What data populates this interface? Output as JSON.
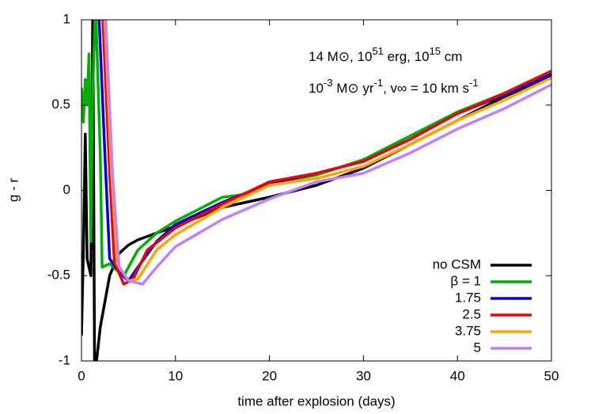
{
  "chart_data": {
    "type": "line",
    "xlabel": "time after explosion (days)",
    "ylabel": "g - r",
    "annotations": [
      [
        "14 M⊙, 10",
        "51",
        " erg, 10",
        "15",
        " cm"
      ],
      [
        "10",
        "-3",
        " M⊙ yr",
        "-1",
        ", v∞ = 10 km s",
        "-1"
      ]
    ],
    "xlim": [
      0,
      50
    ],
    "xticks": [
      0,
      10,
      20,
      30,
      40,
      50
    ],
    "ylim": [
      -1,
      1
    ],
    "yticks": [
      -1,
      -0.5,
      0,
      0.5,
      1
    ],
    "grid": false,
    "legend": "lower right",
    "series": [
      {
        "name": "no CSM",
        "color": "#000000",
        "x": [
          0,
          0.2,
          0.4,
          0.6,
          1.0,
          1.2,
          1.4,
          1.8,
          2,
          3,
          4,
          5,
          6,
          8,
          10,
          15,
          20,
          25,
          30,
          35,
          40,
          45,
          50
        ],
        "values": [
          -0.85,
          -0.35,
          0.33,
          -0.4,
          -0.5,
          1.1,
          -1.1,
          -0.9,
          -0.8,
          -0.5,
          -0.37,
          -0.32,
          -0.29,
          -0.25,
          -0.21,
          -0.1,
          -0.04,
          0.03,
          0.13,
          0.27,
          0.41,
          0.55,
          0.67
        ]
      },
      {
        "name": "β = 1",
        "color": "#00b000",
        "x": [
          0,
          0.2,
          0.4,
          0.6,
          0.8,
          1.0,
          1.2,
          1.5,
          2,
          2.2,
          3,
          4,
          4.5,
          5,
          6,
          8,
          10,
          15,
          18,
          20,
          25,
          30,
          35,
          40,
          45,
          50
        ],
        "values": [
          0.6,
          0.4,
          0.65,
          0.5,
          0.8,
          -0.3,
          0.6,
          1.1,
          0.2,
          -0.45,
          -0.43,
          -0.48,
          -0.5,
          -0.45,
          -0.35,
          -0.25,
          -0.18,
          -0.04,
          -0.02,
          0.04,
          0.09,
          0.18,
          0.32,
          0.46,
          0.57,
          0.69
        ]
      },
      {
        "name": "1.75",
        "color": "#0000e0",
        "x": [
          1.8,
          2.5,
          3,
          4,
          5,
          6,
          8,
          10,
          15,
          20,
          25,
          30,
          35,
          40,
          45,
          50
        ],
        "values": [
          1.1,
          0.2,
          -0.4,
          -0.48,
          -0.53,
          -0.45,
          -0.3,
          -0.2,
          -0.07,
          0.04,
          0.1,
          0.17,
          0.3,
          0.45,
          0.56,
          0.68
        ]
      },
      {
        "name": "2.5",
        "color": "#f00000",
        "x": [
          2.2,
          3,
          3.5,
          4.5,
          5.5,
          7,
          10,
          15,
          20,
          25,
          30,
          35,
          40,
          45,
          50
        ],
        "values": [
          1.1,
          0.1,
          -0.42,
          -0.55,
          -0.52,
          -0.35,
          -0.22,
          -0.08,
          0.05,
          0.1,
          0.17,
          0.3,
          0.45,
          0.57,
          0.7
        ]
      },
      {
        "name": "3.75",
        "color": "#ffa500",
        "x": [
          2.4,
          3.2,
          3.8,
          5,
          6,
          8,
          10,
          15,
          20,
          25,
          30,
          35,
          40,
          45,
          50
        ],
        "values": [
          1.1,
          0.1,
          -0.43,
          -0.53,
          -0.52,
          -0.35,
          -0.26,
          -0.1,
          0.03,
          0.07,
          0.14,
          0.27,
          0.41,
          0.53,
          0.66
        ]
      },
      {
        "name": "5",
        "color": "#c080ff",
        "x": [
          2.5,
          3.3,
          4,
          5,
          6.5,
          8,
          10,
          15,
          20,
          25,
          30,
          35,
          40,
          45,
          50
        ],
        "values": [
          1.1,
          0.1,
          -0.45,
          -0.53,
          -0.55,
          -0.45,
          -0.33,
          -0.17,
          -0.05,
          0.05,
          0.1,
          0.22,
          0.36,
          0.48,
          0.62
        ]
      }
    ]
  }
}
